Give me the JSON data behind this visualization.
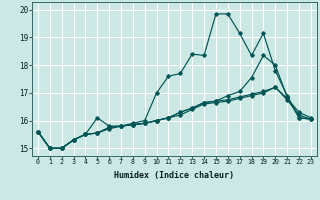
{
  "xlabel": "Humidex (Indice chaleur)",
  "bg_color": "#cce8e4",
  "grid_color": "#ffffff",
  "line_color": "#005555",
  "xlim_min": -0.5,
  "xlim_max": 23.5,
  "ylim_min": 14.72,
  "ylim_max": 20.28,
  "xticks": [
    0,
    1,
    2,
    3,
    4,
    5,
    6,
    7,
    8,
    9,
    10,
    11,
    12,
    13,
    14,
    15,
    16,
    17,
    18,
    19,
    20,
    21,
    22,
    23
  ],
  "yticks": [
    15,
    16,
    17,
    18,
    19,
    20
  ],
  "series": [
    [
      15.6,
      15.0,
      15.0,
      15.3,
      15.5,
      16.1,
      15.8,
      15.8,
      15.9,
      16.0,
      17.0,
      17.6,
      17.7,
      18.4,
      18.35,
      19.85,
      19.85,
      19.15,
      18.35,
      19.15,
      17.8,
      16.9,
      16.1,
      16.05
    ],
    [
      15.6,
      15.0,
      15.0,
      15.3,
      15.5,
      15.55,
      15.75,
      15.8,
      15.85,
      15.9,
      16.0,
      16.1,
      16.3,
      16.45,
      16.65,
      16.7,
      16.9,
      17.05,
      17.55,
      18.35,
      18.0,
      16.85,
      16.1,
      16.05
    ],
    [
      15.6,
      15.0,
      15.0,
      15.3,
      15.5,
      15.55,
      15.75,
      15.8,
      15.85,
      15.9,
      16.0,
      16.1,
      16.3,
      16.45,
      16.65,
      16.7,
      16.75,
      16.85,
      16.95,
      17.05,
      17.2,
      16.8,
      16.3,
      16.1
    ],
    [
      15.6,
      15.0,
      15.0,
      15.3,
      15.5,
      15.55,
      15.7,
      15.8,
      15.85,
      15.9,
      16.0,
      16.1,
      16.2,
      16.4,
      16.6,
      16.65,
      16.7,
      16.8,
      16.9,
      17.0,
      17.2,
      16.75,
      16.2,
      16.05
    ]
  ],
  "xlabel_fontsize": 6.0,
  "xtick_fontsize": 4.8,
  "ytick_fontsize": 5.5
}
